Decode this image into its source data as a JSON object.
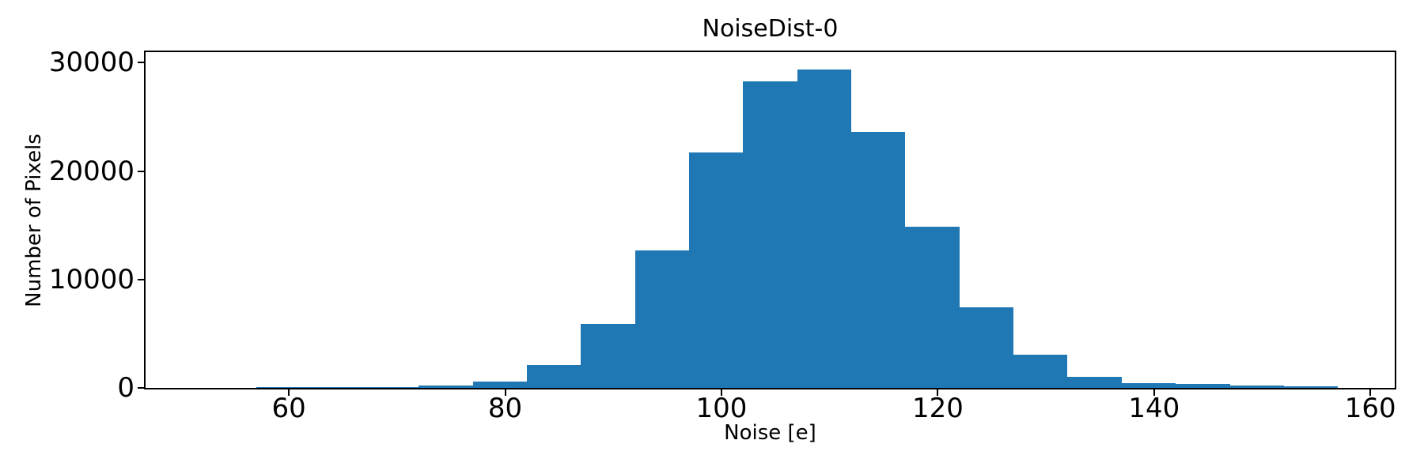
{
  "figure": {
    "background": "#ffffff"
  },
  "chart_data": {
    "type": "bar",
    "subtype": "histogram",
    "title": "NoiseDist-0",
    "xlabel": "Noise [e]",
    "ylabel": "Number of Pixels",
    "bar_color": "#1f77b4",
    "axis_color": "#000000",
    "grid": false,
    "legend": null,
    "bin_edges": [
      52,
      57,
      62,
      67,
      72,
      77,
      82,
      87,
      92,
      97,
      102,
      107,
      112,
      117,
      122,
      127,
      132,
      137,
      142,
      147,
      152,
      157
    ],
    "counts": [
      15,
      40,
      70,
      75,
      190,
      600,
      2100,
      5900,
      12700,
      21700,
      28250,
      29400,
      23600,
      14900,
      7450,
      3070,
      1020,
      470,
      340,
      230,
      150
    ],
    "xlim": [
      46.75,
      162.25
    ],
    "ylim": [
      0,
      30970
    ],
    "xticks": [
      60,
      80,
      100,
      120,
      140,
      160
    ],
    "xtick_labels": [
      "60",
      "80",
      "100",
      "120",
      "140",
      "160"
    ],
    "yticks": [
      0,
      10000,
      20000,
      30000
    ],
    "ytick_labels": [
      "0",
      "10000",
      "20000",
      "30000"
    ]
  }
}
